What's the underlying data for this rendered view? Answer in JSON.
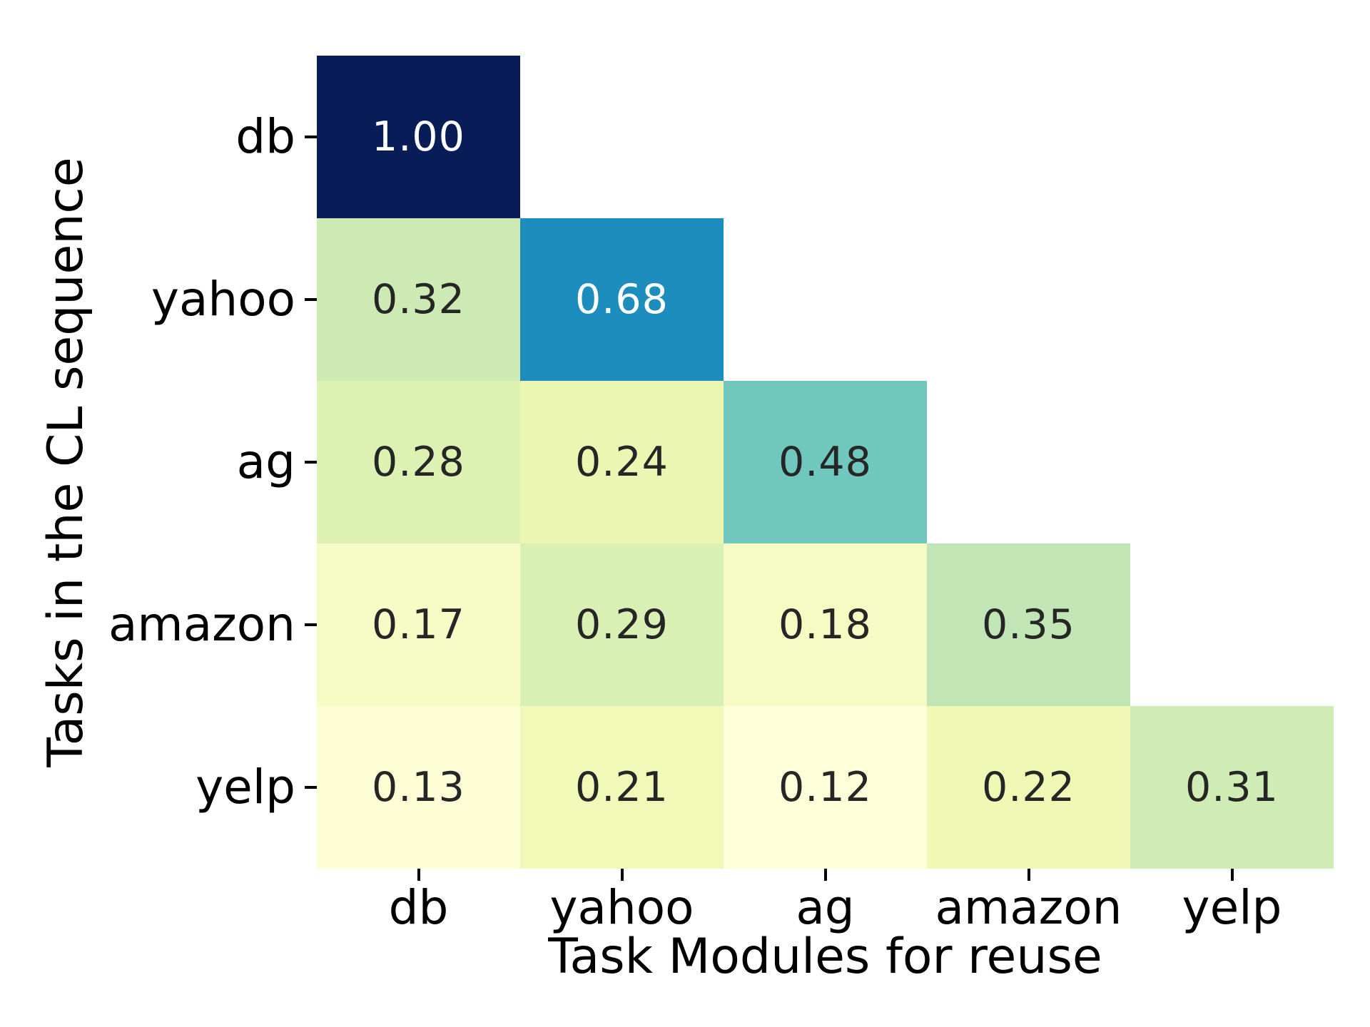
{
  "figure": {
    "background": "#ffffff",
    "text_color": "#000000",
    "tick_color": "#000000"
  },
  "chart_data": {
    "type": "heatmap",
    "shape": "lower-triangular",
    "title": "",
    "xlabel": "Task Modules for reuse",
    "ylabel": "Tasks in the CL sequence",
    "x_categories": [
      "db",
      "yahoo",
      "ag",
      "amazon",
      "yelp"
    ],
    "y_categories": [
      "db",
      "yahoo",
      "ag",
      "amazon",
      "yelp"
    ],
    "colormap": "YlGnBu",
    "vmin": 0.12,
    "vmax": 1.0,
    "legend": "none",
    "grid": "off",
    "values": [
      [
        1.0
      ],
      [
        0.32,
        0.68
      ],
      [
        0.28,
        0.24,
        0.48
      ],
      [
        0.17,
        0.29,
        0.18,
        0.35
      ],
      [
        0.13,
        0.21,
        0.12,
        0.22,
        0.31
      ]
    ],
    "value_labels": [
      [
        "1.00"
      ],
      [
        "0.32",
        "0.68"
      ],
      [
        "0.28",
        "0.24",
        "0.48"
      ],
      [
        "0.17",
        "0.29",
        "0.18",
        "0.35"
      ],
      [
        "0.13",
        "0.21",
        "0.12",
        "0.22",
        "0.31"
      ]
    ],
    "cell_colors": [
      [
        "#081d58"
      ],
      [
        "#cdeab4",
        "#1d8dbe"
      ],
      [
        "#dcf1b2",
        "#eaf6b1",
        "#6fc7be"
      ],
      [
        "#f7fcc7",
        "#d8f0b3",
        "#f5fbc3",
        "#c1e5b4"
      ],
      [
        "#fdfed5",
        "#f0f9b8",
        "#ffffd9",
        "#eff9b5",
        "#cfecb5"
      ]
    ],
    "text_colors": [
      [
        "#ffffff"
      ],
      [
        "#262626",
        "#ffffff"
      ],
      [
        "#262626",
        "#262626",
        "#262626"
      ],
      [
        "#262626",
        "#262626",
        "#262626",
        "#262626"
      ],
      [
        "#262626",
        "#262626",
        "#262626",
        "#262626",
        "#262626"
      ]
    ]
  }
}
